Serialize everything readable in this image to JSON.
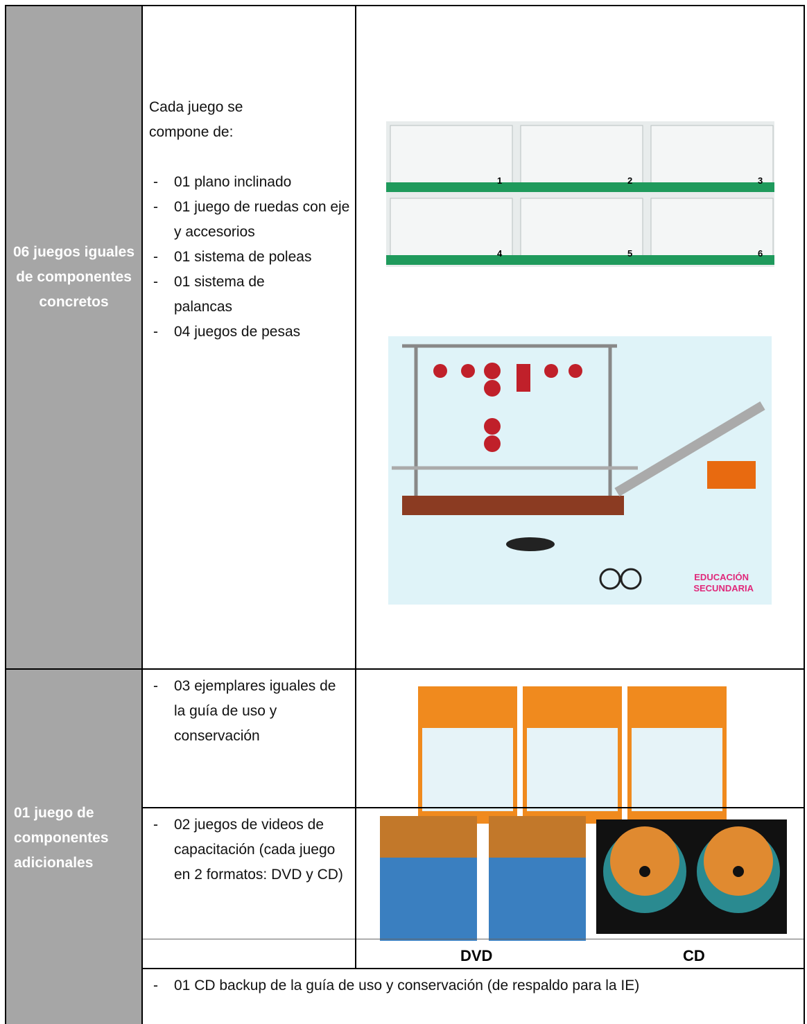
{
  "table": {
    "rows": [
      {
        "label": "06 juegos iguales de componentes concretos",
        "intro": "Cada juego se compone de:",
        "items": [
          "01 plano inclinado",
          "01 juego de ruedas con eje y accesorios",
          "01 sistema de poleas",
          "01 sistema de palancas",
          "04 juegos de pesas"
        ],
        "box_numbers": [
          "1",
          "2",
          "3",
          "4",
          "5",
          "6"
        ],
        "badge": [
          "EDUCACIÓN",
          "SECUNDARIA"
        ]
      },
      {
        "label": "01 juego de componentes adicionales",
        "items": [
          {
            "text": "03 ejemplares iguales de la guía de uso y conservación"
          },
          {
            "text": "02 juegos de videos de capacitación (cada juego en 2 formatos: DVD y CD)",
            "captions": [
              "DVD",
              "CD"
            ]
          },
          {
            "text": "01 CD backup de la guía de uso y conservación (de respaldo para la IE)"
          }
        ]
      }
    ]
  }
}
